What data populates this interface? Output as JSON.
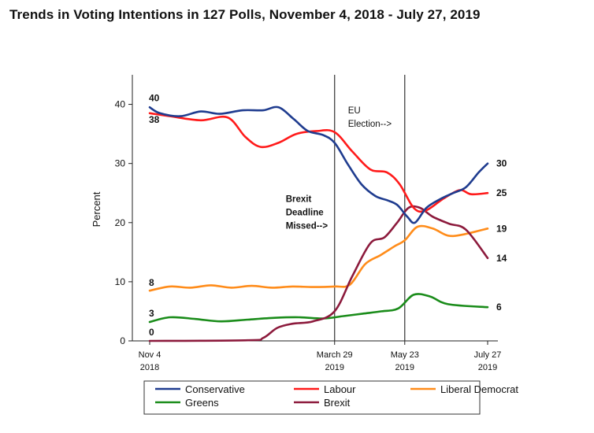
{
  "chart_data": {
    "type": "line",
    "title": "Trends in Voting Intentions in 127 Polls, November 4, 2018 - July 27, 2019",
    "ylabel": "Percent",
    "xlabel": "",
    "ylim": [
      0,
      45
    ],
    "yticks": [
      "0",
      "10",
      "20",
      "30",
      "40"
    ],
    "x_range": [
      "2018-11-04",
      "2019-07-27"
    ],
    "xticks": [
      {
        "date": "2018-11-04",
        "lines": [
          "Nov 4",
          "2018"
        ]
      },
      {
        "date": "2019-03-29",
        "lines": [
          "March 29",
          "2019"
        ]
      },
      {
        "date": "2019-05-23",
        "lines": [
          "May 23",
          "2019"
        ]
      },
      {
        "date": "2019-07-27",
        "lines": [
          "July 27",
          "2019"
        ]
      }
    ],
    "grid": false,
    "legend_position": "bottom",
    "vertical_lines": [
      {
        "date": "2019-03-29",
        "lines": [
          "Brexit",
          "Deadline",
          "Missed-->"
        ],
        "bold": true
      },
      {
        "date": "2019-05-23",
        "lines": [
          "EU",
          "Election-->"
        ],
        "bold": false
      }
    ],
    "series": [
      {
        "name": "Conservative",
        "color": "#1f3c8f",
        "start_label": "40",
        "end_label": "30",
        "points": [
          [
            "2018-11-04",
            39.5
          ],
          [
            "2018-11-12",
            38.5
          ],
          [
            "2018-11-28",
            38.0
          ],
          [
            "2018-12-14",
            38.8
          ],
          [
            "2018-12-29",
            38.4
          ],
          [
            "2019-01-16",
            39.0
          ],
          [
            "2019-02-01",
            39.0
          ],
          [
            "2019-02-13",
            39.5
          ],
          [
            "2019-02-25",
            37.5
          ],
          [
            "2019-03-08",
            35.5
          ],
          [
            "2019-03-20",
            34.8
          ],
          [
            "2019-03-29",
            33.5
          ],
          [
            "2019-04-08",
            30.0
          ],
          [
            "2019-04-19",
            26.5
          ],
          [
            "2019-04-30",
            24.5
          ],
          [
            "2019-05-09",
            23.8
          ],
          [
            "2019-05-17",
            23.0
          ],
          [
            "2019-05-25",
            21.0
          ],
          [
            "2019-05-31",
            20.0
          ],
          [
            "2019-06-09",
            22.5
          ],
          [
            "2019-06-20",
            24.0
          ],
          [
            "2019-06-30",
            25.0
          ],
          [
            "2019-07-10",
            26.0
          ],
          [
            "2019-07-20",
            28.5
          ],
          [
            "2019-07-27",
            30.0
          ]
        ]
      },
      {
        "name": "Labour",
        "color": "#ff1a1a",
        "start_label": "38",
        "end_label": "25",
        "points": [
          [
            "2018-11-04",
            38.5
          ],
          [
            "2018-11-20",
            38.0
          ],
          [
            "2018-12-14",
            37.3
          ],
          [
            "2019-01-04",
            37.8
          ],
          [
            "2019-01-18",
            34.5
          ],
          [
            "2019-01-30",
            32.8
          ],
          [
            "2019-02-13",
            33.5
          ],
          [
            "2019-02-27",
            35.0
          ],
          [
            "2019-03-15",
            35.5
          ],
          [
            "2019-03-29",
            35.3
          ],
          [
            "2019-04-12",
            32.0
          ],
          [
            "2019-04-26",
            29.0
          ],
          [
            "2019-05-09",
            28.5
          ],
          [
            "2019-05-19",
            26.5
          ],
          [
            "2019-05-30",
            22.5
          ],
          [
            "2019-06-08",
            22.0
          ],
          [
            "2019-06-22",
            24.0
          ],
          [
            "2019-07-05",
            25.5
          ],
          [
            "2019-07-14",
            24.8
          ],
          [
            "2019-07-27",
            25.0
          ]
        ]
      },
      {
        "name": "Liberal Democrat",
        "color": "#ff8c1a",
        "start_label": "8",
        "end_label": "19",
        "points": [
          [
            "2018-11-04",
            8.5
          ],
          [
            "2018-11-20",
            9.2
          ],
          [
            "2018-12-06",
            9.0
          ],
          [
            "2018-12-22",
            9.4
          ],
          [
            "2019-01-07",
            9.0
          ],
          [
            "2019-01-23",
            9.3
          ],
          [
            "2019-02-08",
            9.0
          ],
          [
            "2019-02-24",
            9.2
          ],
          [
            "2019-03-12",
            9.1
          ],
          [
            "2019-03-29",
            9.2
          ],
          [
            "2019-04-10",
            9.5
          ],
          [
            "2019-04-22",
            13.0
          ],
          [
            "2019-05-04",
            14.5
          ],
          [
            "2019-05-15",
            16.0
          ],
          [
            "2019-05-23",
            17.0
          ],
          [
            "2019-06-02",
            19.3
          ],
          [
            "2019-06-14",
            19.0
          ],
          [
            "2019-06-26",
            17.8
          ],
          [
            "2019-07-08",
            18.0
          ],
          [
            "2019-07-27",
            19.0
          ]
        ]
      },
      {
        "name": "Greens",
        "color": "#1a8c1a",
        "start_label": "3",
        "end_label": "6",
        "points": [
          [
            "2018-11-04",
            3.2
          ],
          [
            "2018-11-20",
            4.0
          ],
          [
            "2018-12-10",
            3.7
          ],
          [
            "2018-12-30",
            3.3
          ],
          [
            "2019-01-20",
            3.6
          ],
          [
            "2019-02-10",
            3.9
          ],
          [
            "2019-03-01",
            4.0
          ],
          [
            "2019-03-20",
            3.8
          ],
          [
            "2019-04-05",
            4.2
          ],
          [
            "2019-04-20",
            4.6
          ],
          [
            "2019-05-05",
            5.0
          ],
          [
            "2019-05-18",
            5.5
          ],
          [
            "2019-05-30",
            7.8
          ],
          [
            "2019-06-12",
            7.5
          ],
          [
            "2019-06-26",
            6.2
          ],
          [
            "2019-07-27",
            5.7
          ]
        ]
      },
      {
        "name": "Brexit",
        "color": "#8c1a3c",
        "start_label": "0",
        "end_label": "14",
        "points": [
          [
            "2018-11-04",
            0.0
          ],
          [
            "2019-01-20",
            0.1
          ],
          [
            "2019-02-01",
            0.5
          ],
          [
            "2019-02-12",
            2.2
          ],
          [
            "2019-02-24",
            2.9
          ],
          [
            "2019-03-12",
            3.3
          ],
          [
            "2019-03-29",
            5.0
          ],
          [
            "2019-04-12",
            11.0
          ],
          [
            "2019-04-26",
            16.5
          ],
          [
            "2019-05-07",
            17.5
          ],
          [
            "2019-05-17",
            20.0
          ],
          [
            "2019-05-26",
            22.5
          ],
          [
            "2019-06-04",
            22.5
          ],
          [
            "2019-06-14",
            21.0
          ],
          [
            "2019-06-27",
            19.8
          ],
          [
            "2019-07-10",
            18.8
          ],
          [
            "2019-07-27",
            14.0
          ]
        ]
      }
    ]
  }
}
